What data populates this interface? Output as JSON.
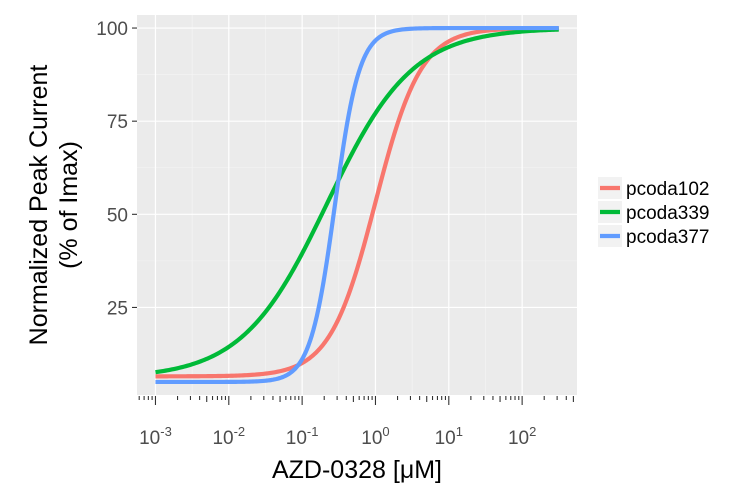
{
  "chart_data": {
    "type": "line",
    "xlabel": "AZD-0328 [μM]",
    "ylabel_line1": "Normalized Peak Current",
    "ylabel_line2": "(% of Imax)",
    "x_scale": "log10",
    "xlim": [
      0.00056,
      560
    ],
    "ylim": [
      1.5,
      103.5
    ],
    "grid": true,
    "legend_placement": "right",
    "y_ticks": [
      25,
      50,
      75,
      100
    ],
    "y_tick_labels": [
      "25",
      "50",
      "75",
      "100"
    ],
    "x_ticks": [
      0.001,
      0.01,
      0.1,
      1,
      10,
      100
    ],
    "x_tick_labels": [
      {
        "base": "10",
        "exp": "-3"
      },
      {
        "base": "10",
        "exp": "-2"
      },
      {
        "base": "10",
        "exp": "-1"
      },
      {
        "base": "10",
        "exp": "0"
      },
      {
        "base": "10",
        "exp": "1"
      },
      {
        "base": "10",
        "exp": "2"
      }
    ],
    "x_range": [
      0.001,
      316
    ],
    "series": [
      {
        "name": "pcoda102",
        "color": "#F8766D",
        "bottom": 6.5,
        "top": 100,
        "ec50": 1.0,
        "hill": 1.4
      },
      {
        "name": "pcoda339",
        "color": "#00BA38",
        "bottom": 6.0,
        "top": 100,
        "ec50": 0.22,
        "hill": 0.75
      },
      {
        "name": "pcoda377",
        "color": "#619CFF",
        "bottom": 5.0,
        "top": 100,
        "ec50": 0.28,
        "hill": 2.6
      }
    ]
  }
}
